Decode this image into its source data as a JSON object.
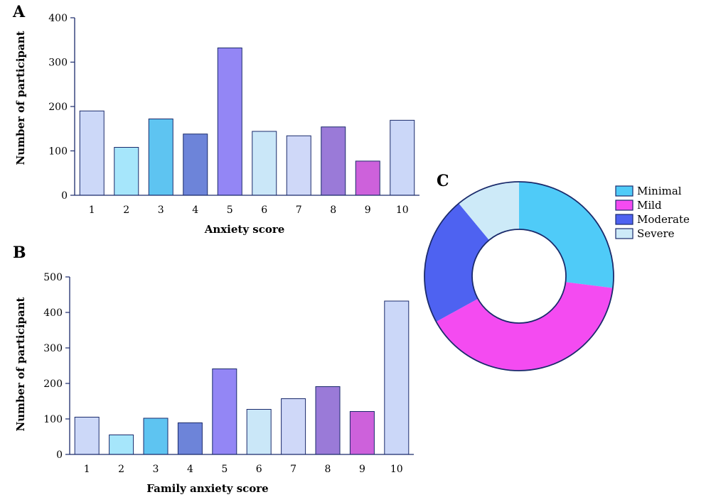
{
  "colors": {
    "bar": [
      "#ccd8f8",
      "#a6e6fb",
      "#5ec4f1",
      "#6d84d9",
      "#9386f5",
      "#cae7f8",
      "#cfd8f8",
      "#9a7ad8",
      "#cd61db",
      "#cbd7f8"
    ],
    "donut": [
      "#4fcbf8",
      "#f44bf1",
      "#4e62f1",
      "#cdeaf8"
    ],
    "outline": "#1a2a6b"
  },
  "chart_data": [
    {
      "type": "bar",
      "panel": "A",
      "categories": [
        "1",
        "2",
        "3",
        "4",
        "5",
        "6",
        "7",
        "8",
        "9",
        "10"
      ],
      "values": [
        190,
        108,
        172,
        138,
        332,
        144,
        134,
        154,
        77,
        169
      ],
      "xlabel": "Anxiety score",
      "ylabel": "Number of participant",
      "ylim": [
        0,
        400
      ],
      "yticks": [
        "0",
        "100",
        "200",
        "300",
        "400"
      ],
      "grid": false
    },
    {
      "type": "bar",
      "panel": "B",
      "categories": [
        "1",
        "2",
        "3",
        "4",
        "5",
        "6",
        "7",
        "8",
        "9",
        "10"
      ],
      "values": [
        105,
        55,
        102,
        89,
        241,
        127,
        157,
        191,
        121,
        432
      ],
      "xlabel": "Family anxiety score",
      "ylabel": "Number of participant",
      "ylim": [
        0,
        500
      ],
      "yticks": [
        "0",
        "100",
        "200",
        "300",
        "400",
        "500"
      ],
      "grid": false
    },
    {
      "type": "pie",
      "panel": "C",
      "donut": true,
      "labels": [
        "Minimal",
        "Mild",
        "Moderate",
        "Severe"
      ],
      "values": [
        27,
        40,
        22,
        11
      ],
      "legend_position": "top-right"
    }
  ]
}
